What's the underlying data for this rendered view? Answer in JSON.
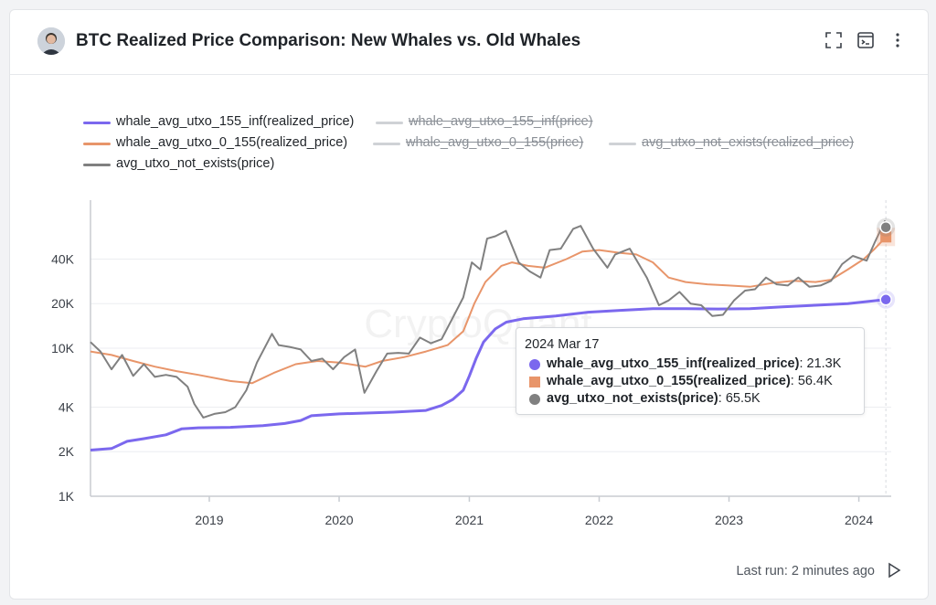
{
  "header": {
    "title": "BTC Realized Price Comparison: New Whales vs. Old Whales"
  },
  "footer": {
    "last_run": "Last run: 2 minutes ago"
  },
  "watermark": "CryptoQuant",
  "legend": [
    {
      "label": "whale_avg_utxo_155_inf(realized_price)",
      "color": "#7b68ee",
      "active": true
    },
    {
      "label": "whale_avg_utxo_155_inf(price)",
      "color": "#cfd2d6",
      "active": false
    },
    {
      "label": "whale_avg_utxo_0_155(realized_price)",
      "color": "#e8956a",
      "active": true
    },
    {
      "label": "whale_avg_utxo_0_155(price)",
      "color": "#cfd2d6",
      "active": false
    },
    {
      "label": "avg_utxo_not_exists(realized_price)",
      "color": "#cfd2d6",
      "active": false
    },
    {
      "label": "avg_utxo_not_exists(price)",
      "color": "#808080",
      "active": true
    }
  ],
  "tooltip": {
    "date": "2024 Mar 17",
    "rows": [
      {
        "series": "whale_avg_utxo_155_inf(realized_price)",
        "value": "21.3K",
        "color": "#7b68ee",
        "marker": "circle"
      },
      {
        "series": "whale_avg_utxo_0_155(realized_price)",
        "value": "56.4K",
        "color": "#e8956a",
        "marker": "square"
      },
      {
        "series": "avg_utxo_not_exists(price)",
        "value": "65.5K",
        "color": "#808080",
        "marker": "circle"
      }
    ]
  },
  "chart_data": {
    "type": "line",
    "title": "BTC Realized Price Comparison: New Whales vs. Old Whales",
    "xlabel": "",
    "ylabel": "",
    "x_ticks": [
      "2019",
      "2020",
      "2021",
      "2022",
      "2023",
      "2024"
    ],
    "y_ticks": [
      {
        "label": "1K",
        "value": 1000
      },
      {
        "label": "2K",
        "value": 2000
      },
      {
        "label": "4K",
        "value": 4000
      },
      {
        "label": "10K",
        "value": 10000
      },
      {
        "label": "20K",
        "value": 20000
      },
      {
        "label": "40K",
        "value": 40000
      }
    ],
    "y_scale": "log",
    "ylim": [
      1000,
      100000
    ],
    "xlim": [
      "2018-02-01",
      "2024-04-01"
    ],
    "grid": true,
    "legend_position": "top-left",
    "series": [
      {
        "name": "whale_avg_utxo_155_inf(realized_price)",
        "color": "#7b68ee",
        "points": [
          [
            "2018-02-01",
            2050
          ],
          [
            "2018-04-01",
            2100
          ],
          [
            "2018-05-15",
            2350
          ],
          [
            "2018-07-01",
            2450
          ],
          [
            "2018-09-01",
            2600
          ],
          [
            "2018-10-15",
            2850
          ],
          [
            "2018-12-01",
            2900
          ],
          [
            "2019-03-01",
            2920
          ],
          [
            "2019-06-01",
            3000
          ],
          [
            "2019-08-01",
            3100
          ],
          [
            "2019-09-15",
            3250
          ],
          [
            "2019-10-15",
            3500
          ],
          [
            "2020-01-01",
            3600
          ],
          [
            "2020-06-01",
            3700
          ],
          [
            "2020-09-01",
            3800
          ],
          [
            "2020-10-15",
            4100
          ],
          [
            "2020-11-15",
            4500
          ],
          [
            "2020-12-15",
            5200
          ],
          [
            "2021-01-01",
            6500
          ],
          [
            "2021-01-20",
            8500
          ],
          [
            "2021-02-10",
            11000
          ],
          [
            "2021-03-15",
            13500
          ],
          [
            "2021-04-15",
            15000
          ],
          [
            "2021-06-01",
            15800
          ],
          [
            "2021-09-01",
            16500
          ],
          [
            "2021-12-01",
            17500
          ],
          [
            "2022-03-01",
            18000
          ],
          [
            "2022-06-01",
            18500
          ],
          [
            "2022-09-01",
            18500
          ],
          [
            "2022-12-01",
            18400
          ],
          [
            "2023-03-01",
            18500
          ],
          [
            "2023-06-01",
            19000
          ],
          [
            "2023-09-01",
            19500
          ],
          [
            "2023-12-01",
            20000
          ],
          [
            "2024-03-17",
            21300
          ]
        ]
      },
      {
        "name": "whale_avg_utxo_0_155(realized_price)",
        "color": "#e8956a",
        "points": [
          [
            "2018-02-01",
            9500
          ],
          [
            "2018-04-01",
            9000
          ],
          [
            "2018-06-01",
            8200
          ],
          [
            "2018-08-01",
            7500
          ],
          [
            "2018-10-01",
            7000
          ],
          [
            "2018-12-01",
            6600
          ],
          [
            "2019-03-01",
            6000
          ],
          [
            "2019-05-01",
            5800
          ],
          [
            "2019-07-01",
            6800
          ],
          [
            "2019-09-01",
            7800
          ],
          [
            "2019-11-01",
            8200
          ],
          [
            "2020-01-01",
            8000
          ],
          [
            "2020-03-15",
            7500
          ],
          [
            "2020-05-01",
            8200
          ],
          [
            "2020-07-01",
            8700
          ],
          [
            "2020-09-01",
            9500
          ],
          [
            "2020-11-01",
            10500
          ],
          [
            "2020-12-15",
            13000
          ],
          [
            "2021-01-15",
            20000
          ],
          [
            "2021-02-15",
            28000
          ],
          [
            "2021-04-01",
            36000
          ],
          [
            "2021-05-01",
            38000
          ],
          [
            "2021-06-15",
            36000
          ],
          [
            "2021-08-01",
            35000
          ],
          [
            "2021-10-01",
            40000
          ],
          [
            "2021-11-15",
            45000
          ],
          [
            "2022-01-01",
            46000
          ],
          [
            "2022-03-01",
            44000
          ],
          [
            "2022-04-15",
            43000
          ],
          [
            "2022-06-01",
            38000
          ],
          [
            "2022-07-15",
            30000
          ],
          [
            "2022-09-01",
            28000
          ],
          [
            "2022-11-01",
            27000
          ],
          [
            "2023-01-01",
            26500
          ],
          [
            "2023-03-01",
            26000
          ],
          [
            "2023-05-01",
            27500
          ],
          [
            "2023-07-01",
            28500
          ],
          [
            "2023-09-01",
            28000
          ],
          [
            "2023-10-15",
            29000
          ],
          [
            "2023-12-01",
            34000
          ],
          [
            "2024-01-15",
            40000
          ],
          [
            "2024-02-15",
            47000
          ],
          [
            "2024-03-17",
            56400
          ]
        ]
      },
      {
        "name": "avg_utxo_not_exists(price)",
        "color": "#808080",
        "points": [
          [
            "2018-02-01",
            11000
          ],
          [
            "2018-03-01",
            9500
          ],
          [
            "2018-04-01",
            7200
          ],
          [
            "2018-05-01",
            9000
          ],
          [
            "2018-06-01",
            6500
          ],
          [
            "2018-07-01",
            7800
          ],
          [
            "2018-08-01",
            6400
          ],
          [
            "2018-09-01",
            6600
          ],
          [
            "2018-10-01",
            6400
          ],
          [
            "2018-11-01",
            5500
          ],
          [
            "2018-11-20",
            4200
          ],
          [
            "2018-12-15",
            3400
          ],
          [
            "2019-01-15",
            3600
          ],
          [
            "2019-02-15",
            3700
          ],
          [
            "2019-03-15",
            4000
          ],
          [
            "2019-04-15",
            5200
          ],
          [
            "2019-05-15",
            8000
          ],
          [
            "2019-06-26",
            12500
          ],
          [
            "2019-07-15",
            10500
          ],
          [
            "2019-08-15",
            10200
          ],
          [
            "2019-09-15",
            9800
          ],
          [
            "2019-10-15",
            8200
          ],
          [
            "2019-11-15",
            8500
          ],
          [
            "2019-12-15",
            7200
          ],
          [
            "2020-01-15",
            8700
          ],
          [
            "2020-02-15",
            9800
          ],
          [
            "2020-03-12",
            5000
          ],
          [
            "2020-04-15",
            7000
          ],
          [
            "2020-05-15",
            9200
          ],
          [
            "2020-06-15",
            9300
          ],
          [
            "2020-07-15",
            9200
          ],
          [
            "2020-08-15",
            11800
          ],
          [
            "2020-09-15",
            10800
          ],
          [
            "2020-10-15",
            11500
          ],
          [
            "2020-11-15",
            16000
          ],
          [
            "2020-12-15",
            22000
          ],
          [
            "2021-01-08",
            38000
          ],
          [
            "2021-02-01",
            34000
          ],
          [
            "2021-02-20",
            55000
          ],
          [
            "2021-03-15",
            57000
          ],
          [
            "2021-04-14",
            62000
          ],
          [
            "2021-05-20",
            38000
          ],
          [
            "2021-06-20",
            33000
          ],
          [
            "2021-07-20",
            30000
          ],
          [
            "2021-08-15",
            46000
          ],
          [
            "2021-09-15",
            47000
          ],
          [
            "2021-10-20",
            64000
          ],
          [
            "2021-11-10",
            67000
          ],
          [
            "2021-12-15",
            47000
          ],
          [
            "2022-01-24",
            35000
          ],
          [
            "2022-02-15",
            43000
          ],
          [
            "2022-03-28",
            47000
          ],
          [
            "2022-05-15",
            30000
          ],
          [
            "2022-06-18",
            19500
          ],
          [
            "2022-07-15",
            21000
          ],
          [
            "2022-08-15",
            24000
          ],
          [
            "2022-09-15",
            20000
          ],
          [
            "2022-10-15",
            19500
          ],
          [
            "2022-11-15",
            16500
          ],
          [
            "2022-12-15",
            16800
          ],
          [
            "2023-01-15",
            21000
          ],
          [
            "2023-02-15",
            24500
          ],
          [
            "2023-03-15",
            25000
          ],
          [
            "2023-04-15",
            30000
          ],
          [
            "2023-05-15",
            27000
          ],
          [
            "2023-06-15",
            26500
          ],
          [
            "2023-07-15",
            30000
          ],
          [
            "2023-08-15",
            26000
          ],
          [
            "2023-09-15",
            26500
          ],
          [
            "2023-10-15",
            28500
          ],
          [
            "2023-11-15",
            37000
          ],
          [
            "2023-12-15",
            42000
          ],
          [
            "2024-01-23",
            39000
          ],
          [
            "2024-02-15",
            52000
          ],
          [
            "2024-03-14",
            72000
          ],
          [
            "2024-03-17",
            65500
          ]
        ]
      }
    ]
  }
}
